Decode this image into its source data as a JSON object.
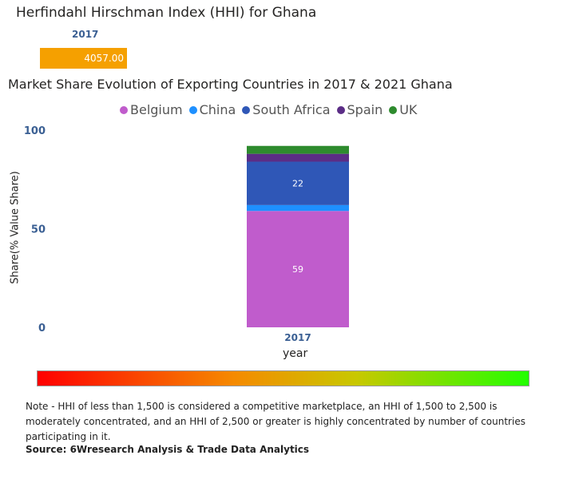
{
  "hhi": {
    "title": "Herfindahl Hirschman Index (HHI) for Ghana",
    "year": "2017",
    "value_label": "4057.00",
    "color": "#f5a000"
  },
  "market_share": {
    "title": "Market Share Evolution of Exporting Countries in 2017 & 2021 Ghana"
  },
  "chart_data": {
    "type": "bar",
    "stacked": true,
    "title": "Market Share Evolution of Exporting Countries in 2017 & 2021 Ghana",
    "xlabel": "year",
    "ylabel": "Share(% Value Share)",
    "ylim": [
      0,
      100
    ],
    "yticks": [
      "0",
      "50",
      "100"
    ],
    "categories": [
      "2017"
    ],
    "series": [
      {
        "name": "Belgium",
        "values": [
          59
        ],
        "color": "#c05ccc",
        "label": "59"
      },
      {
        "name": "China",
        "values": [
          3
        ],
        "color": "#1e90ff",
        "label": ""
      },
      {
        "name": "South Africa",
        "values": [
          22
        ],
        "color": "#2f57b7",
        "label": "22"
      },
      {
        "name": "Spain",
        "values": [
          4
        ],
        "color": "#5b2d86",
        "label": ""
      },
      {
        "name": "UK",
        "values": [
          4
        ],
        "color": "#2e8b2e",
        "label": ""
      }
    ],
    "legend_position": "top"
  },
  "gradient_legend": {
    "colors": [
      "#ff0000",
      "#f58a00",
      "#c8c800",
      "#22ff00"
    ]
  },
  "note": "Note - HHI of less than 1,500 is considered a competitive marketplace, an HHI of 1,500 to 2,500 is moderately concentrated, and an HHI of 2,500 or greater is highly concentrated by number of countries participating in it.",
  "source": "Source: 6Wresearch Analysis & Trade Data Analytics"
}
